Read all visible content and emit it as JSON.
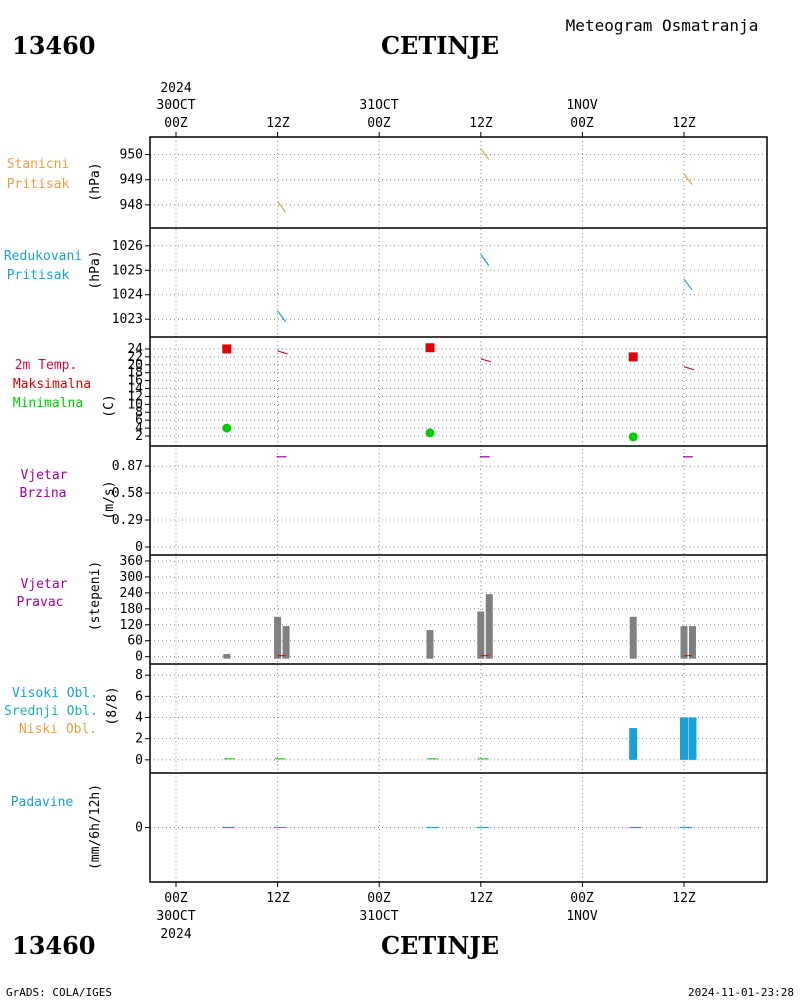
{
  "header": {
    "station_id": "13460",
    "station_name": "CETINJE",
    "chart_title": "Meteogram Osmatranja"
  },
  "time_axis": {
    "year": "2024",
    "date_labels": [
      "30OCT",
      "31OCT",
      "1NOV"
    ],
    "hour_labels": [
      "00Z",
      "12Z",
      "00Z",
      "12Z",
      "00Z",
      "12Z"
    ]
  },
  "footer": {
    "station_id": "13460",
    "station_name": "CETINJE",
    "credit": "GrADS: COLA/IGES",
    "timestamp": "2024-11-01-23:28"
  },
  "colors": {
    "station_pressure": "#e8a040",
    "reduced_pressure": "#1aa0d8",
    "temp_label": "#d0104a",
    "tmax": "#e00000",
    "tmin": "#00cc00",
    "wind": "#a000a0",
    "wind_dir_bars": "#808080",
    "high_cloud": "#1aa0d8",
    "mid_cloud": "#20b0b0",
    "low_cloud": "#e8a040",
    "precip": "#1aa0d8",
    "grid": "#888888"
  },
  "chart_data": [
    {
      "type": "line",
      "panel": "station_pressure",
      "labels": [
        "Stanicni",
        "Pritisak"
      ],
      "ylabel": "(hPa)",
      "yticks": [
        948,
        949,
        950
      ],
      "ylim": [
        947.4,
        950.3
      ],
      "points": [
        {
          "t": 12,
          "v": 947.9
        },
        {
          "t": 36,
          "v": 950.0
        },
        {
          "t": 60,
          "v": 949.0
        }
      ]
    },
    {
      "type": "line",
      "panel": "reduced_pressure",
      "labels": [
        "Redukovani",
        "Pritisak"
      ],
      "ylabel": "(hPa)",
      "yticks": [
        1023,
        1024,
        1025,
        1026
      ],
      "ylim": [
        1022.6,
        1026.4
      ],
      "points": [
        {
          "t": 12,
          "v": 1023.1
        },
        {
          "t": 36,
          "v": 1025.4
        },
        {
          "t": 60,
          "v": 1024.4
        }
      ]
    },
    {
      "type": "scatter",
      "panel": "temperature",
      "labels": [
        "2m Temp.",
        "Maksimalna",
        "Minimalna"
      ],
      "ylabel": "(C)",
      "yticks": [
        2,
        4,
        6,
        8,
        10,
        12,
        14,
        16,
        18,
        20,
        22,
        24
      ],
      "ylim": [
        1,
        25.5
      ],
      "temp_2m": [
        {
          "t": 12,
          "v": 23
        },
        {
          "t": 36,
          "v": 21
        },
        {
          "t": 60,
          "v": 19
        }
      ],
      "maximum": [
        {
          "t": 6,
          "v": 24
        },
        {
          "t": 30,
          "v": 24.3
        },
        {
          "t": 54,
          "v": 22
        }
      ],
      "minimum": [
        {
          "t": 6,
          "v": 4
        },
        {
          "t": 30,
          "v": 2.8
        },
        {
          "t": 54,
          "v": 1.8
        }
      ]
    },
    {
      "type": "line",
      "panel": "wind_speed",
      "labels": [
        "Vjetar",
        "Brzina"
      ],
      "ylabel": "(m/s)",
      "yticks": [
        0,
        0.29,
        0.58,
        0.87
      ],
      "ylim": [
        0,
        1.0
      ],
      "points": [
        {
          "t": 12,
          "v": 0.97
        },
        {
          "t": 36,
          "v": 0.97
        },
        {
          "t": 60,
          "v": 0.97
        }
      ]
    },
    {
      "type": "bar",
      "panel": "wind_direction",
      "labels": [
        "Vjetar",
        "Pravac"
      ],
      "ylabel": "(stepeni)",
      "yticks": [
        0,
        60,
        120,
        180,
        240,
        300,
        360
      ],
      "ylim": [
        -5,
        360
      ],
      "bars": [
        {
          "t": 6,
          "v": 10
        },
        {
          "t": 12,
          "v": 150
        },
        {
          "t": 13,
          "v": 115
        },
        {
          "t": 30,
          "v": 100
        },
        {
          "t": 36,
          "v": 170
        },
        {
          "t": 37,
          "v": 235
        },
        {
          "t": 54,
          "v": 150
        },
        {
          "t": 60,
          "v": 115
        },
        {
          "t": 61,
          "v": 115
        }
      ]
    },
    {
      "type": "bar",
      "panel": "clouds",
      "labels": [
        "Visoki Obl.",
        "Srednji Obl.",
        "Niski Obl."
      ],
      "ylabel": "(8/8)",
      "yticks": [
        0,
        2,
        4,
        6,
        8
      ],
      "ylim": [
        -0.3,
        8.3
      ],
      "high": [
        {
          "t": 54,
          "v": 3
        },
        {
          "t": 60,
          "v": 4
        },
        {
          "t": 61,
          "v": 4
        }
      ],
      "low": [
        {
          "t": 6,
          "v": 0
        },
        {
          "t": 12,
          "v": 0
        },
        {
          "t": 30,
          "v": 0
        },
        {
          "t": 36,
          "v": 0
        }
      ]
    },
    {
      "type": "line",
      "panel": "precipitation",
      "labels": [
        "Padavine"
      ],
      "ylabel": "(mm/6h/12h)",
      "yticks": [
        0
      ],
      "ylim": [
        -5,
        5
      ],
      "points": [
        {
          "t": 6,
          "v": 0
        },
        {
          "t": 12,
          "v": 0
        },
        {
          "t": 30,
          "v": 0
        },
        {
          "t": 36,
          "v": 0
        },
        {
          "t": 54,
          "v": 0
        },
        {
          "t": 60,
          "v": 0
        }
      ]
    }
  ]
}
